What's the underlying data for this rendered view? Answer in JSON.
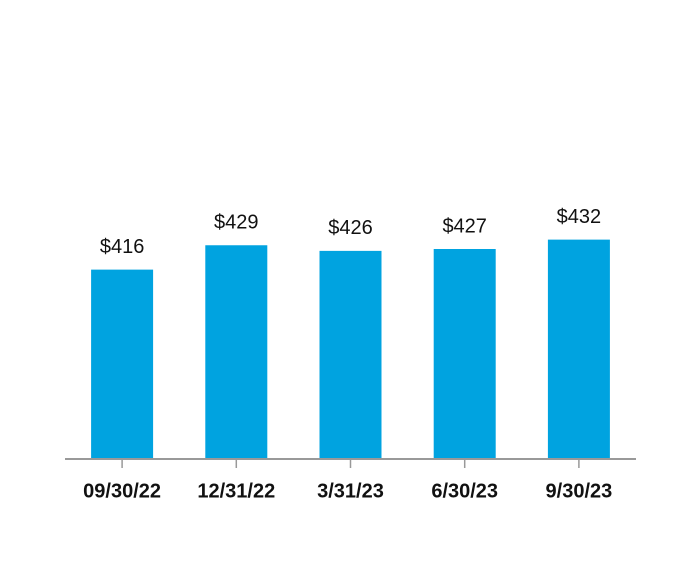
{
  "chart_data": {
    "type": "bar",
    "categories": [
      "09/30/22",
      "12/31/22",
      "3/31/23",
      "6/30/23",
      "9/30/23"
    ],
    "values": [
      416,
      429,
      426,
      427,
      432
    ],
    "value_labels": [
      "$416",
      "$429",
      "$426",
      "$427",
      "$432"
    ],
    "color": "#00a3e0",
    "ylim": [
      315,
      515
    ]
  }
}
